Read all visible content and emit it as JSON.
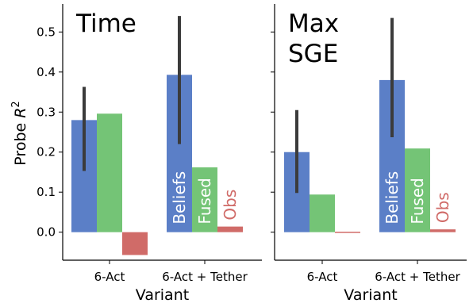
{
  "chart_data": [
    {
      "type": "bar",
      "title": "Time",
      "ylabel": "Probe R",
      "ylabel_superscript": "2",
      "xlabel": "Variant",
      "ylim": [
        -0.07,
        0.57
      ],
      "yticks": [
        "0.0",
        "0.1",
        "0.2",
        "0.3",
        "0.4",
        "0.5"
      ],
      "ytick_values": [
        0.0,
        0.1,
        0.2,
        0.3,
        0.4,
        0.5
      ],
      "categories": [
        "6-Act",
        "6-Act + Tether"
      ],
      "series": [
        {
          "name": "Beliefs",
          "color": "#5b7fc7",
          "values": [
            0.28,
            0.393
          ],
          "err_low": [
            0.153,
            0.22
          ],
          "err_high": [
            0.363,
            0.54
          ]
        },
        {
          "name": "Fused",
          "color": "#74c476",
          "values": [
            0.296,
            0.162
          ]
        },
        {
          "name": "Obs",
          "color": "#d06b68",
          "values": [
            -0.057,
            0.014
          ]
        }
      ],
      "bar_annotations": [
        "Beliefs",
        "Fused",
        "Obs"
      ],
      "grid": false
    },
    {
      "type": "bar",
      "title": "Max\nSGE",
      "xlabel": "Variant",
      "ylim": [
        -0.07,
        0.57
      ],
      "categories": [
        "6-Act",
        "6-Act + Tether"
      ],
      "series": [
        {
          "name": "Beliefs",
          "color": "#5b7fc7",
          "values": [
            0.2,
            0.38
          ],
          "err_low": [
            0.098,
            0.237
          ],
          "err_high": [
            0.305,
            0.535
          ]
        },
        {
          "name": "Fused",
          "color": "#74c476",
          "values": [
            0.094,
            0.209
          ]
        },
        {
          "name": "Obs",
          "color": "#d06b68",
          "values": [
            0.001,
            0.007
          ]
        }
      ],
      "bar_annotations": [
        "Beliefs",
        "Fused",
        "Obs"
      ],
      "grid": false
    }
  ]
}
